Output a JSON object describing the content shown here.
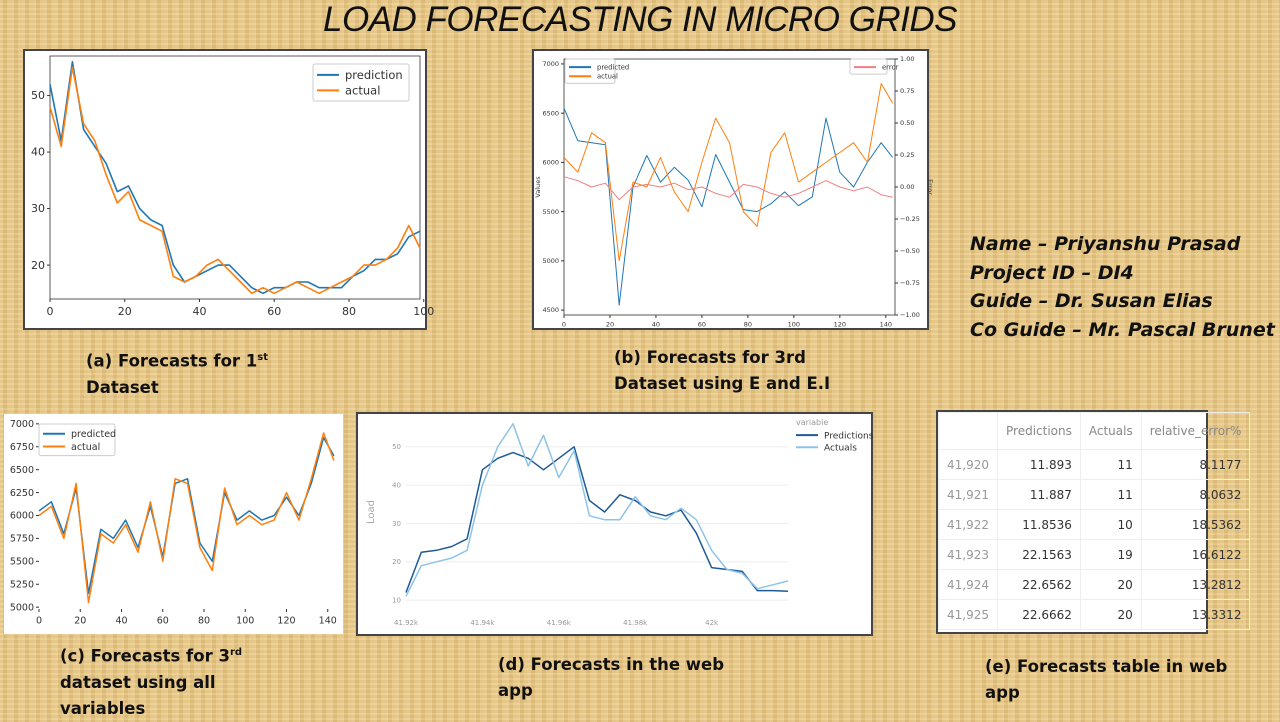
{
  "title": "LOAD FORECASTING IN MICRO GRIDS",
  "info": {
    "name": "Name – Priyanshu Prasad",
    "project": "Project ID – DI4",
    "guide": "Guide – Dr. Susan Elias",
    "coguide": "Co Guide – Mr. Pascal Brunet"
  },
  "captions": {
    "a": {
      "l1": "(a) Forecasts for 1",
      "sup": "st",
      "l2": "Dataset"
    },
    "b": {
      "l1": "(b) Forecasts for 3rd",
      "l2": "Dataset using E and E.I"
    },
    "c": {
      "l1": "(c) Forecasts for 3",
      "sup": "rd",
      "l2": "dataset using all",
      "l3": "variables"
    },
    "d": {
      "l1": "(d) Forecasts in the web",
      "l2": "app"
    },
    "e": {
      "l1": "(e) Forecasts table in web",
      "l2": "app"
    }
  },
  "colors": {
    "blue": "#1f77b4",
    "orange": "#ff7f0e",
    "error": "#f08080",
    "pred_dark": "#1f5a96",
    "act_light": "#8ec3e8"
  },
  "chart_data": [
    {
      "id": "a",
      "type": "line",
      "xlim": [
        0,
        99
      ],
      "ylim": [
        14,
        57
      ],
      "xticks": [
        0,
        20,
        40,
        60,
        80,
        100
      ],
      "yticks": [
        20,
        30,
        40,
        50
      ],
      "x": [
        0,
        3,
        6,
        9,
        12,
        15,
        18,
        21,
        24,
        27,
        30,
        33,
        36,
        39,
        42,
        45,
        48,
        51,
        54,
        57,
        60,
        63,
        66,
        69,
        72,
        75,
        78,
        81,
        84,
        87,
        90,
        93,
        96,
        99
      ],
      "legend": "top-right",
      "series": [
        {
          "name": "prediction",
          "color": "#1f77b4",
          "values": [
            52,
            42,
            56,
            44,
            41,
            38,
            33,
            34,
            30,
            28,
            27,
            20,
            17,
            18,
            19,
            20,
            20,
            18,
            16,
            15,
            16,
            16,
            17,
            17,
            16,
            16,
            16,
            18,
            19,
            21,
            21,
            22,
            25,
            26
          ]
        },
        {
          "name": "actual",
          "color": "#ff7f0e",
          "values": [
            48,
            41,
            55,
            45,
            42,
            36,
            31,
            33,
            28,
            27,
            26,
            18,
            17,
            18,
            20,
            21,
            19,
            17,
            15,
            16,
            15,
            16,
            17,
            16,
            15,
            16,
            17,
            18,
            20,
            20,
            21,
            23,
            27,
            23
          ]
        }
      ]
    },
    {
      "id": "b",
      "type": "line",
      "xlim": [
        0,
        144
      ],
      "ylim": [
        4450,
        7050
      ],
      "y2lim": [
        -1,
        1
      ],
      "ylabel": "Values",
      "y2label": "Error",
      "xticks": [
        0,
        20,
        40,
        60,
        80,
        100,
        120,
        140
      ],
      "yticks": [
        4500,
        5000,
        5500,
        6000,
        6500,
        7000
      ],
      "y2ticks": [
        "−1.00",
        "−0.75",
        "−0.50",
        "−0.25",
        "0.00",
        "0.25",
        "0.50",
        "0.75",
        "1.00"
      ],
      "x": [
        0,
        6,
        12,
        18,
        24,
        30,
        36,
        42,
        48,
        54,
        60,
        66,
        72,
        78,
        84,
        90,
        96,
        102,
        108,
        114,
        120,
        126,
        132,
        138,
        143
      ],
      "series": [
        {
          "name": "predicted",
          "color": "#1f77b4",
          "axis": "left",
          "values": [
            6550,
            6220,
            6200,
            6180,
            4550,
            5750,
            6070,
            5800,
            5950,
            5820,
            5550,
            6080,
            5800,
            5520,
            5500,
            5580,
            5700,
            5560,
            5650,
            6450,
            5900,
            5750,
            6000,
            6200,
            6050
          ]
        },
        {
          "name": "actual",
          "color": "#ff7f0e",
          "axis": "left",
          "values": [
            6050,
            5900,
            6300,
            6200,
            5000,
            5800,
            5750,
            6050,
            5700,
            5500,
            6000,
            6450,
            6200,
            5500,
            5350,
            6100,
            6300,
            5800,
            5900,
            6000,
            6100,
            6200,
            6000,
            6800,
            6600
          ]
        },
        {
          "name": "error",
          "color": "#f08080",
          "axis": "right",
          "values": [
            0.08,
            0.05,
            0.0,
            0.03,
            -0.1,
            0.0,
            0.02,
            0.0,
            0.03,
            -0.02,
            0.0,
            -0.05,
            -0.08,
            0.02,
            0.0,
            -0.05,
            -0.08,
            -0.05,
            0.0,
            0.05,
            0.0,
            -0.03,
            0.0,
            -0.06,
            -0.08
          ]
        }
      ]
    },
    {
      "id": "c",
      "type": "line",
      "xlim": [
        0,
        144
      ],
      "ylim": [
        4980,
        7020
      ],
      "xticks": [
        0,
        20,
        40,
        60,
        80,
        100,
        120,
        140
      ],
      "yticks": [
        5000,
        5250,
        5500,
        5750,
        6000,
        6250,
        6500,
        6750,
        7000
      ],
      "x": [
        0,
        6,
        12,
        18,
        24,
        30,
        36,
        42,
        48,
        54,
        60,
        66,
        72,
        78,
        84,
        90,
        96,
        102,
        108,
        114,
        120,
        126,
        132,
        138,
        143
      ],
      "legend": "top-left",
      "series": [
        {
          "name": "predicted",
          "color": "#1f77b4",
          "values": [
            6050,
            6150,
            5800,
            6300,
            5150,
            5850,
            5750,
            5950,
            5650,
            6100,
            5550,
            6350,
            6400,
            5700,
            5500,
            6250,
            5950,
            6050,
            5950,
            6000,
            6200,
            6000,
            6350,
            6850,
            6650
          ]
        },
        {
          "name": "actual",
          "color": "#ff7f0e",
          "values": [
            6000,
            6100,
            5750,
            6350,
            5050,
            5800,
            5700,
            5900,
            5600,
            6150,
            5500,
            6400,
            6350,
            5650,
            5400,
            6300,
            5900,
            6000,
            5900,
            5950,
            6250,
            5950,
            6400,
            6900,
            6600
          ]
        }
      ]
    },
    {
      "id": "d",
      "type": "line",
      "xlim": [
        41920,
        42020
      ],
      "ylim": [
        9,
        57
      ],
      "ylabel": "Load",
      "legend_title": "variable",
      "xticks": [
        "41.92k",
        "41.94k",
        "41.96k",
        "41.98k",
        "42k"
      ],
      "xtick_values": [
        41920,
        41940,
        41960,
        41980,
        42000
      ],
      "yticks": [
        10,
        20,
        30,
        40,
        50
      ],
      "x": [
        41920,
        41924,
        41928,
        41932,
        41936,
        41940,
        41944,
        41948,
        41952,
        41956,
        41960,
        41964,
        41968,
        41972,
        41976,
        41980,
        41984,
        41988,
        41992,
        41996,
        42000,
        42004,
        42008,
        42012,
        42016,
        42020
      ],
      "series": [
        {
          "name": "Predictions",
          "color": "#1f5a96",
          "values": [
            12,
            22.5,
            23,
            24,
            26,
            44,
            47,
            48.5,
            47,
            44,
            47,
            50,
            36,
            33,
            37.5,
            36,
            33,
            32,
            33.5,
            27.5,
            18.5,
            18,
            17.5,
            12.5,
            12.5,
            12.3
          ]
        },
        {
          "name": "Actuals",
          "color": "#8ec3e8",
          "values": [
            11,
            19,
            20,
            21,
            23,
            40,
            50,
            56,
            45,
            53,
            42,
            49,
            32,
            31,
            31,
            37,
            32,
            31,
            34,
            31,
            23,
            18,
            17,
            13,
            14,
            15
          ]
        }
      ]
    },
    {
      "id": "e",
      "type": "table",
      "columns": [
        "",
        "Predictions",
        "Actuals",
        "relative_error%"
      ],
      "rows": [
        [
          "41,920",
          "11.893",
          "11",
          "8.1177"
        ],
        [
          "41,921",
          "11.887",
          "11",
          "8.0632"
        ],
        [
          "41,922",
          "11.8536",
          "10",
          "18.5362"
        ],
        [
          "41,923",
          "22.1563",
          "19",
          "16.6122"
        ],
        [
          "41,924",
          "22.6562",
          "20",
          "13.2812"
        ],
        [
          "41,925",
          "22.6662",
          "20",
          "13.3312"
        ]
      ]
    }
  ]
}
